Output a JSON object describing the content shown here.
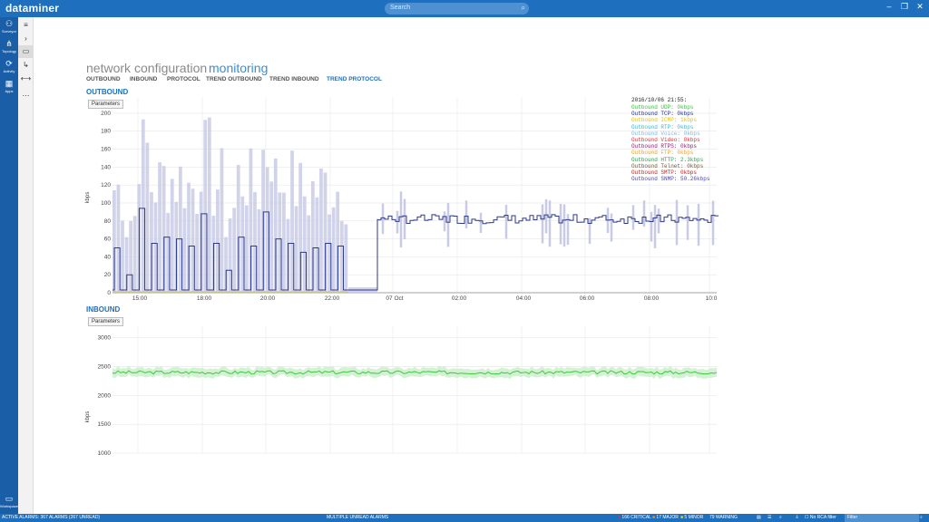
{
  "app": {
    "logo": "dataminer",
    "search_placeholder": "Search"
  },
  "window_controls": {
    "minimize": "–",
    "restore": "❐",
    "close": "✕"
  },
  "leftnav": [
    {
      "label": "Surveyor",
      "icon": "surveyor-icon",
      "glyph": "⚇"
    },
    {
      "label": "Topology",
      "icon": "topology-icon",
      "glyph": "⋔"
    },
    {
      "label": "Activity",
      "icon": "activity-icon",
      "glyph": "⟳"
    },
    {
      "label": "Apps",
      "icon": "apps-icon",
      "glyph": "▦"
    },
    {
      "label": "Workspace",
      "icon": "workspace-icon",
      "glyph": "▭"
    }
  ],
  "subnav": [
    {
      "name": "hamburger-icon",
      "glyph": "≡"
    },
    {
      "name": "chevron-right-icon",
      "glyph": "›"
    },
    {
      "name": "monitor-icon",
      "glyph": "▭"
    },
    {
      "name": "arrow-return-icon",
      "glyph": "↳"
    },
    {
      "name": "link-icon",
      "glyph": "⟷"
    },
    {
      "name": "more-icon",
      "glyph": "⋯"
    }
  ],
  "tabs": [
    "network",
    "configuration",
    "monitoring"
  ],
  "active_tab": 2,
  "subtabs": [
    "OUTBOUND",
    "INBOUND",
    "PROTOCOL",
    "TREND OUTBOUND",
    "TREND INBOUND",
    "TREND PROTOCOL"
  ],
  "active_subtab": 5,
  "outbound": {
    "title": "OUTBOUND",
    "params_label": "Parameters"
  },
  "inbound": {
    "title": "INBOUND",
    "params_label": "Parameters"
  },
  "chart_data": [
    {
      "type": "line",
      "title": "OUTBOUND",
      "ylabel": "kbps",
      "ylim": [
        0,
        210
      ],
      "yticks": [
        0,
        20,
        40,
        60,
        80,
        100,
        120,
        140,
        160,
        180,
        200
      ],
      "xticks": [
        "15:00",
        "18:00",
        "20:00",
        "22:00",
        "07 Oct",
        "02:00",
        "04:00",
        "06:00",
        "08:00",
        "10:0"
      ],
      "grid": true,
      "legend": {
        "timestamp": "2016/10/06 21:55:",
        "entries": [
          {
            "text": "Outbound UDP: 0kbps",
            "color": "#3bbf3b"
          },
          {
            "text": "Outbound TCP: 0kbps",
            "color": "#1f2a8c"
          },
          {
            "text": "Outbound ICMP: 1kbps",
            "color": "#e0c020"
          },
          {
            "text": "Outbound RTP: 0kbps",
            "color": "#39b8d6"
          },
          {
            "text": "Outbound Voice: 0kbps",
            "color": "#7fb6e0"
          },
          {
            "text": "Outbound Video: 0kbps",
            "color": "#e0303a"
          },
          {
            "text": "Outbound RTPS: 0kbps",
            "color": "#8a1f6a"
          },
          {
            "text": "Outbound FTP: 0kbps",
            "color": "#f0a020"
          },
          {
            "text": "Outbound HTTP: 2.3kbps",
            "color": "#2aa04a"
          },
          {
            "text": "Outbound Telnet: 0kbps",
            "color": "#6a5a3a"
          },
          {
            "text": "Outbound SMTP: 0kbps",
            "color": "#c02020"
          },
          {
            "text": "Outbound SNMP: 50.26kbps",
            "color": "#4a4aa0"
          }
        ]
      },
      "series_color": "#2e3a8c",
      "band_color": "#c9cbe6",
      "segments": [
        {
          "x_range": [
            "14:20",
            "23:40"
          ],
          "pattern": "pulses",
          "low": 3,
          "high": [
            50,
            20,
            94,
            55,
            62,
            60,
            52,
            88,
            55,
            25,
            62,
            52,
            90,
            60,
            55,
            45,
            50,
            55,
            52
          ]
        },
        {
          "x_range": [
            "23:40",
            "00:40"
          ],
          "pattern": "flat",
          "value": 3
        },
        {
          "x_range": [
            "00:40",
            "10:00"
          ],
          "pattern": "flat",
          "value": 82
        }
      ]
    },
    {
      "type": "line",
      "title": "INBOUND",
      "ylabel": "kbps",
      "ylim": [
        1000,
        3200
      ],
      "yticks": [
        1000,
        1500,
        2000,
        2500,
        3000
      ],
      "grid": true,
      "series_color": "#3ec83e",
      "band_color": "#c8efc8",
      "level": 2400
    }
  ],
  "status": {
    "alarms": "ACTIVE ALARMS: 367 ALARMS (267 UNREAD)",
    "unread": "MULTIPLE UNREAD ALARMS",
    "critical": "166 CRITICAL",
    "major": "17 MAJOR",
    "minor": "5 MINOR",
    "warning": "79 WARNING",
    "rca": "No RCA filter",
    "filter": "Filter",
    "critical_color": "#e03030",
    "major_color": "#f09020",
    "minor_color": "#f0d020",
    "warning_color": "#60b0f0"
  }
}
